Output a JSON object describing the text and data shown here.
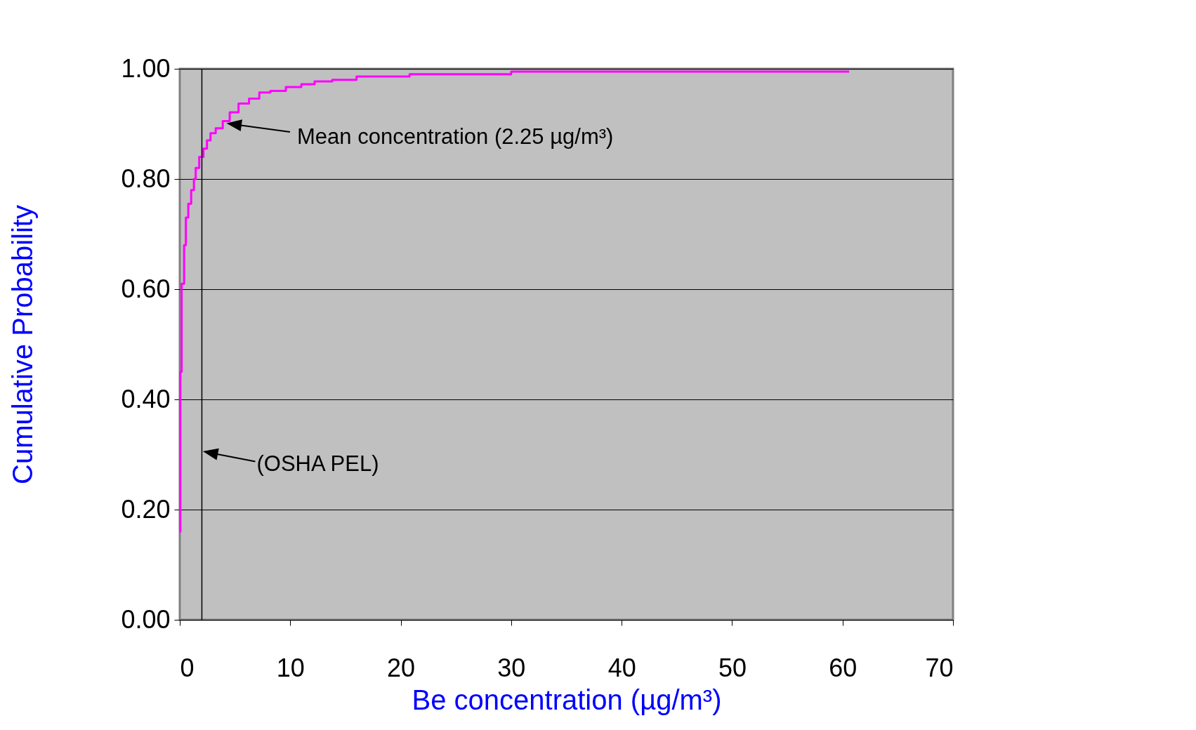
{
  "chart_data": {
    "type": "step",
    "xlabel": "Be concentration (µg/m³)",
    "ylabel": "Cumulative Probability",
    "series": [
      {
        "color": "#ff00ff",
        "x": [
          0,
          0.05,
          0.17,
          0.39,
          0.55,
          0.77,
          1.03,
          1.28,
          1.44,
          1.76,
          2.14,
          2.46,
          2.78,
          3.25,
          3.89,
          4.52,
          5.32,
          6.27,
          7.2,
          8.2,
          9.6,
          11.0,
          12.2,
          13.8,
          16.0,
          20.8,
          30.0,
          60.6
        ],
        "values": [
          0.16,
          0.45,
          0.61,
          0.68,
          0.73,
          0.755,
          0.78,
          0.8,
          0.82,
          0.84,
          0.855,
          0.87,
          0.883,
          0.892,
          0.905,
          0.921,
          0.937,
          0.946,
          0.957,
          0.96,
          0.967,
          0.972,
          0.977,
          0.98,
          0.986,
          0.99,
          0.995,
          0.995
        ]
      }
    ],
    "xlim": [
      0,
      70
    ],
    "xticks": [
      0,
      10,
      20,
      30,
      40,
      50,
      60,
      70
    ],
    "ylim": [
      0,
      1
    ],
    "yticks": [
      {
        "value": 0,
        "label": "0.00"
      },
      {
        "value": 0.2,
        "label": "0.20"
      },
      {
        "value": 0.4,
        "label": "0.40"
      },
      {
        "value": 0.6,
        "label": "0.60"
      },
      {
        "value": 0.8,
        "label": "0.80"
      },
      {
        "value": 1,
        "label": "1.00"
      }
    ],
    "ref_lines": [
      {
        "axis": "x",
        "value": 2,
        "label": "(OSHA PEL)",
        "color": "#000000"
      }
    ],
    "annotations": [
      "Mean concentration (2.25 µg/m³)"
    ],
    "grid": "y"
  }
}
